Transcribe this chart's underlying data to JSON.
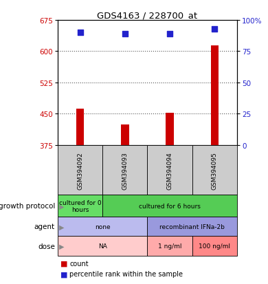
{
  "title": "GDS4163 / 228700_at",
  "samples": [
    "GSM394092",
    "GSM394093",
    "GSM394094",
    "GSM394095"
  ],
  "counts": [
    462,
    425,
    452,
    614
  ],
  "percentile_ranks": [
    90,
    89,
    89,
    93
  ],
  "ylim_left": [
    375,
    675
  ],
  "yticks_left": [
    375,
    450,
    525,
    600,
    675
  ],
  "ylim_right": [
    0,
    100
  ],
  "yticks_right": [
    0,
    25,
    50,
    75,
    100
  ],
  "bar_color": "#cc0000",
  "dot_color": "#2222cc",
  "bar_width": 0.18,
  "growth_protocol": [
    [
      "cultured for 0\nhours",
      1
    ],
    [
      "cultured for 6 hours",
      3
    ]
  ],
  "growth_protocol_colors": [
    "#66dd66",
    "#55cc55"
  ],
  "agent": [
    [
      "none",
      2
    ],
    [
      "recombinant IFNa-2b",
      2
    ]
  ],
  "agent_colors": [
    "#bbbbee",
    "#9999dd"
  ],
  "dose": [
    [
      "NA",
      2
    ],
    [
      "1 ng/ml",
      1
    ],
    [
      "100 ng/ml",
      1
    ]
  ],
  "dose_colors": [
    "#ffcccc",
    "#ffaaaa",
    "#ff8888"
  ],
  "label_color_left": "#cc0000",
  "label_color_right": "#2222cc",
  "grid_color": "#555555",
  "sample_box_color": "#cccccc",
  "grid_ticks": [
    450,
    525,
    600
  ],
  "fig_width": 3.9,
  "fig_height": 4.14,
  "dpi": 100
}
